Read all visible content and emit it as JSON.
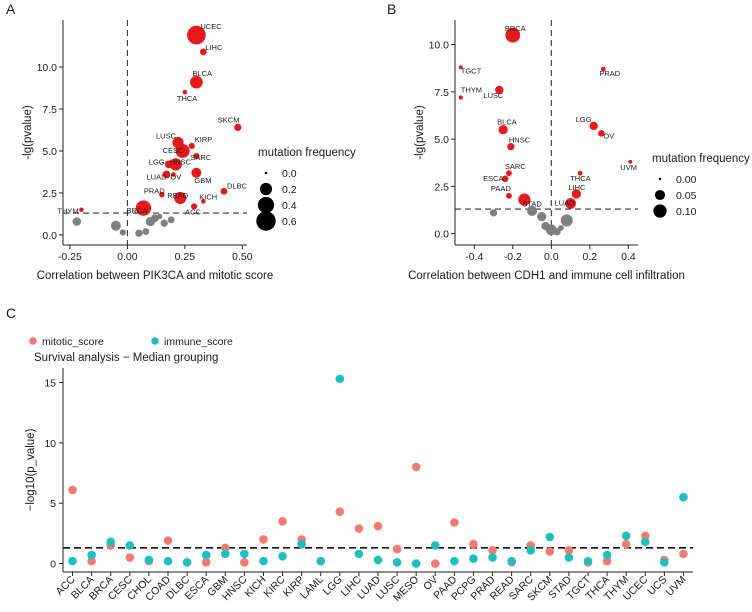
{
  "chart_data": [
    {
      "panel": "A",
      "type": "scatter",
      "xlabel": "Correlation between PIK3CA and mitotic score",
      "ylabel": "-lg(pvalue)",
      "xlim": [
        -0.28,
        0.52
      ],
      "ylim": [
        -0.6,
        12.8
      ],
      "xticks": [
        -0.25,
        0.0,
        0.25,
        0.5
      ],
      "xtick_labels": [
        "-0.25",
        "0.00",
        "0.25",
        "0.50"
      ],
      "yticks": [
        0.0,
        2.5,
        5.0,
        7.5,
        10.0
      ],
      "ytick_labels": [
        "0.0",
        "2.5",
        "5.0",
        "7.5",
        "10.0"
      ],
      "vline": 0,
      "hline": 1.3,
      "significant_color": "#e41a1c",
      "nonsignificant_color": "#808080",
      "legend": {
        "title": "mutation frequency",
        "items": [
          {
            "label": "0.0",
            "value": 0.0
          },
          {
            "label": "0.2",
            "value": 0.2
          },
          {
            "label": "0.4",
            "value": 0.4
          },
          {
            "label": "0.6",
            "value": 0.6
          }
        ]
      },
      "points": [
        {
          "label": "UCEC",
          "x": 0.3,
          "y": 11.9,
          "freq": 0.55
        },
        {
          "label": "LIHC",
          "x": 0.33,
          "y": 10.9,
          "freq": 0.04
        },
        {
          "label": "BLCA",
          "x": 0.3,
          "y": 9.1,
          "freq": 0.22
        },
        {
          "label": "THCA",
          "x": 0.25,
          "y": 8.5,
          "freq": 0.01
        },
        {
          "label": "SKCM",
          "x": 0.48,
          "y": 6.4,
          "freq": 0.05
        },
        {
          "label": "LUSC",
          "x": 0.22,
          "y": 5.5,
          "freq": 0.16
        },
        {
          "label": "KIRP",
          "x": 0.28,
          "y": 5.3,
          "freq": 0.03
        },
        {
          "label": "CESC",
          "x": 0.24,
          "y": 5.0,
          "freq": 0.28
        },
        {
          "label": "SARC",
          "x": 0.3,
          "y": 4.7,
          "freq": 0.03
        },
        {
          "label": "LGG",
          "x": 0.18,
          "y": 4.2,
          "freq": 0.06
        },
        {
          "label": "HNSC",
          "x": 0.21,
          "y": 4.2,
          "freq": 0.2
        },
        {
          "label": "LUAD",
          "x": 0.17,
          "y": 3.6,
          "freq": 0.06
        },
        {
          "label": "OV",
          "x": 0.2,
          "y": 3.6,
          "freq": 0.01
        },
        {
          "label": "GBM",
          "x": 0.3,
          "y": 3.7,
          "freq": 0.12
        },
        {
          "label": "DLBC",
          "x": 0.42,
          "y": 2.6,
          "freq": 0.04
        },
        {
          "label": "PRAD",
          "x": 0.15,
          "y": 2.4,
          "freq": 0.02
        },
        {
          "label": "READ",
          "x": 0.23,
          "y": 2.2,
          "freq": 0.2
        },
        {
          "label": "KICH",
          "x": 0.33,
          "y": 2.0,
          "freq": 0.01
        },
        {
          "label": "ACC",
          "x": 0.29,
          "y": 1.7,
          "freq": 0.03
        },
        {
          "label": "BRCA",
          "x": 0.07,
          "y": 1.6,
          "freq": 0.35
        },
        {
          "label": "THYM",
          "x": -0.2,
          "y": 1.5,
          "freq": 0.01
        },
        {
          "label": "",
          "x": -0.22,
          "y": 0.8,
          "freq": 0.08
        },
        {
          "label": "",
          "x": -0.05,
          "y": 0.55,
          "freq": 0.12
        },
        {
          "label": "",
          "x": -0.02,
          "y": 0.15,
          "freq": 0.03
        },
        {
          "label": "",
          "x": 0.05,
          "y": 0.1,
          "freq": 0.05
        },
        {
          "label": "",
          "x": 0.08,
          "y": 0.2,
          "freq": 0.04
        },
        {
          "label": "",
          "x": 0.1,
          "y": 0.8,
          "freq": 0.1
        },
        {
          "label": "",
          "x": 0.12,
          "y": 1.0,
          "freq": 0.06
        },
        {
          "label": "",
          "x": 0.14,
          "y": 1.1,
          "freq": 0.02
        },
        {
          "label": "",
          "x": 0.16,
          "y": 0.7,
          "freq": 0.05
        },
        {
          "label": "",
          "x": 0.19,
          "y": 0.9,
          "freq": 0.04
        }
      ]
    },
    {
      "panel": "B",
      "type": "scatter",
      "xlabel": "Correlation between CDH1 and immune cell infiltration",
      "ylabel": "-lg(pvalue)",
      "xlim": [
        -0.5,
        0.45
      ],
      "ylim": [
        -0.6,
        11.3
      ],
      "xticks": [
        -0.4,
        -0.2,
        0.0,
        0.2,
        0.4
      ],
      "xtick_labels": [
        "-0.4",
        "-0.2",
        "0.0",
        "0.2",
        "0.4"
      ],
      "yticks": [
        0.0,
        2.5,
        5.0,
        7.5,
        10.0
      ],
      "ytick_labels": [
        "0.0",
        "2.5",
        "5.0",
        "7.5",
        "10.0"
      ],
      "vline": 0,
      "hline": 1.3,
      "significant_color": "#e41a1c",
      "nonsignificant_color": "#808080",
      "legend": {
        "title": "mutation frequency",
        "items": [
          {
            "label": "0.00",
            "value": 0.0
          },
          {
            "label": "0.05",
            "value": 0.05
          },
          {
            "label": "0.10",
            "value": 0.1
          }
        ]
      },
      "points": [
        {
          "label": "BRCA",
          "x": -0.2,
          "y": 10.5,
          "freq": 0.13
        },
        {
          "label": "TGCT",
          "x": -0.47,
          "y": 8.8,
          "freq": 0.002
        },
        {
          "label": "PRAD",
          "x": 0.27,
          "y": 8.7,
          "freq": 0.005
        },
        {
          "label": "THYM",
          "x": -0.47,
          "y": 7.2,
          "freq": 0.003
        },
        {
          "label": "LUSC",
          "x": -0.27,
          "y": 7.6,
          "freq": 0.03
        },
        {
          "label": "LGG",
          "x": 0.22,
          "y": 5.7,
          "freq": 0.03
        },
        {
          "label": "OV",
          "x": 0.26,
          "y": 5.3,
          "freq": 0.015
        },
        {
          "label": "BLCA",
          "x": -0.25,
          "y": 5.5,
          "freq": 0.04
        },
        {
          "label": "UVM",
          "x": 0.41,
          "y": 3.8,
          "freq": 0.002
        },
        {
          "label": "HNSC",
          "x": -0.21,
          "y": 4.6,
          "freq": 0.02
        },
        {
          "label": "THCA",
          "x": 0.15,
          "y": 3.2,
          "freq": 0.005
        },
        {
          "label": "SARC",
          "x": -0.22,
          "y": 3.2,
          "freq": 0.01
        },
        {
          "label": "ESCA",
          "x": -0.24,
          "y": 2.9,
          "freq": 0.015
        },
        {
          "label": "LIHC",
          "x": 0.13,
          "y": 2.1,
          "freq": 0.04
        },
        {
          "label": "PAAD",
          "x": -0.22,
          "y": 2.0,
          "freq": 0.01
        },
        {
          "label": "STAD",
          "x": -0.14,
          "y": 1.8,
          "freq": 0.08
        },
        {
          "label": "LUAD",
          "x": 0.1,
          "y": 1.6,
          "freq": 0.06
        },
        {
          "label": "",
          "x": -0.1,
          "y": 1.2,
          "freq": 0.05
        },
        {
          "label": "",
          "x": -0.3,
          "y": 1.1,
          "freq": 0.02
        },
        {
          "label": "",
          "x": -0.05,
          "y": 0.9,
          "freq": 0.04
        },
        {
          "label": "",
          "x": 0.08,
          "y": 0.7,
          "freq": 0.08
        },
        {
          "label": "",
          "x": -0.03,
          "y": 0.4,
          "freq": 0.03
        },
        {
          "label": "",
          "x": 0.0,
          "y": 0.2,
          "freq": 0.06
        },
        {
          "label": "",
          "x": 0.03,
          "y": 0.1,
          "freq": 0.02
        },
        {
          "label": "",
          "x": 0.05,
          "y": 0.3,
          "freq": 0.01
        }
      ]
    },
    {
      "panel": "C",
      "type": "scatter",
      "title": "Survival analysis − Median grouping",
      "xlabel": "",
      "ylabel": "−log10(p_value)",
      "ylim": [
        -0.7,
        16.2
      ],
      "yticks": [
        0,
        5,
        10,
        15
      ],
      "ytick_labels": [
        "0",
        "5",
        "10",
        "15"
      ],
      "hline": 1.3,
      "categories": [
        "ACC",
        "BLCA",
        "BRCA",
        "CESC",
        "CHOL",
        "COAD",
        "DLBC",
        "ESCA",
        "GBM",
        "HNSC",
        "KICH",
        "KIRC",
        "KIRP",
        "LAML",
        "LGG",
        "LIHC",
        "LUAD",
        "LUSC",
        "MESO",
        "OV",
        "PAAD",
        "PCPG",
        "PRAD",
        "READ",
        "SARC",
        "SKCM",
        "STAD",
        "TGCT",
        "THCA",
        "THYM",
        "UCEC",
        "UCS",
        "UVM"
      ],
      "series": [
        {
          "name": "mitotic_score",
          "color": "#f07b72",
          "values": [
            6.1,
            0.2,
            1.5,
            0.5,
            0.2,
            1.9,
            0.1,
            0.1,
            1.3,
            0.1,
            2.0,
            3.5,
            2.0,
            0.2,
            4.3,
            2.9,
            3.1,
            1.2,
            8.0,
            0.0,
            3.4,
            1.6,
            1.1,
            0.1,
            1.5,
            1.0,
            1.1,
            0.1,
            0.2,
            1.6,
            2.3,
            0.3,
            0.8
          ]
        },
        {
          "name": "immune_score",
          "color": "#1fbfbf",
          "values": [
            0.2,
            0.7,
            1.8,
            1.5,
            0.3,
            0.2,
            0.1,
            0.7,
            0.8,
            0.8,
            0.2,
            0.6,
            1.6,
            0.2,
            15.3,
            0.8,
            0.3,
            0.1,
            0.0,
            1.5,
            0.2,
            0.4,
            0.5,
            0.2,
            1.1,
            2.2,
            0.5,
            0.2,
            0.7,
            2.3,
            1.8,
            0.1,
            5.5
          ]
        }
      ]
    }
  ],
  "panels": {
    "a_letter": "A",
    "b_letter": "B",
    "c_letter": "C"
  }
}
